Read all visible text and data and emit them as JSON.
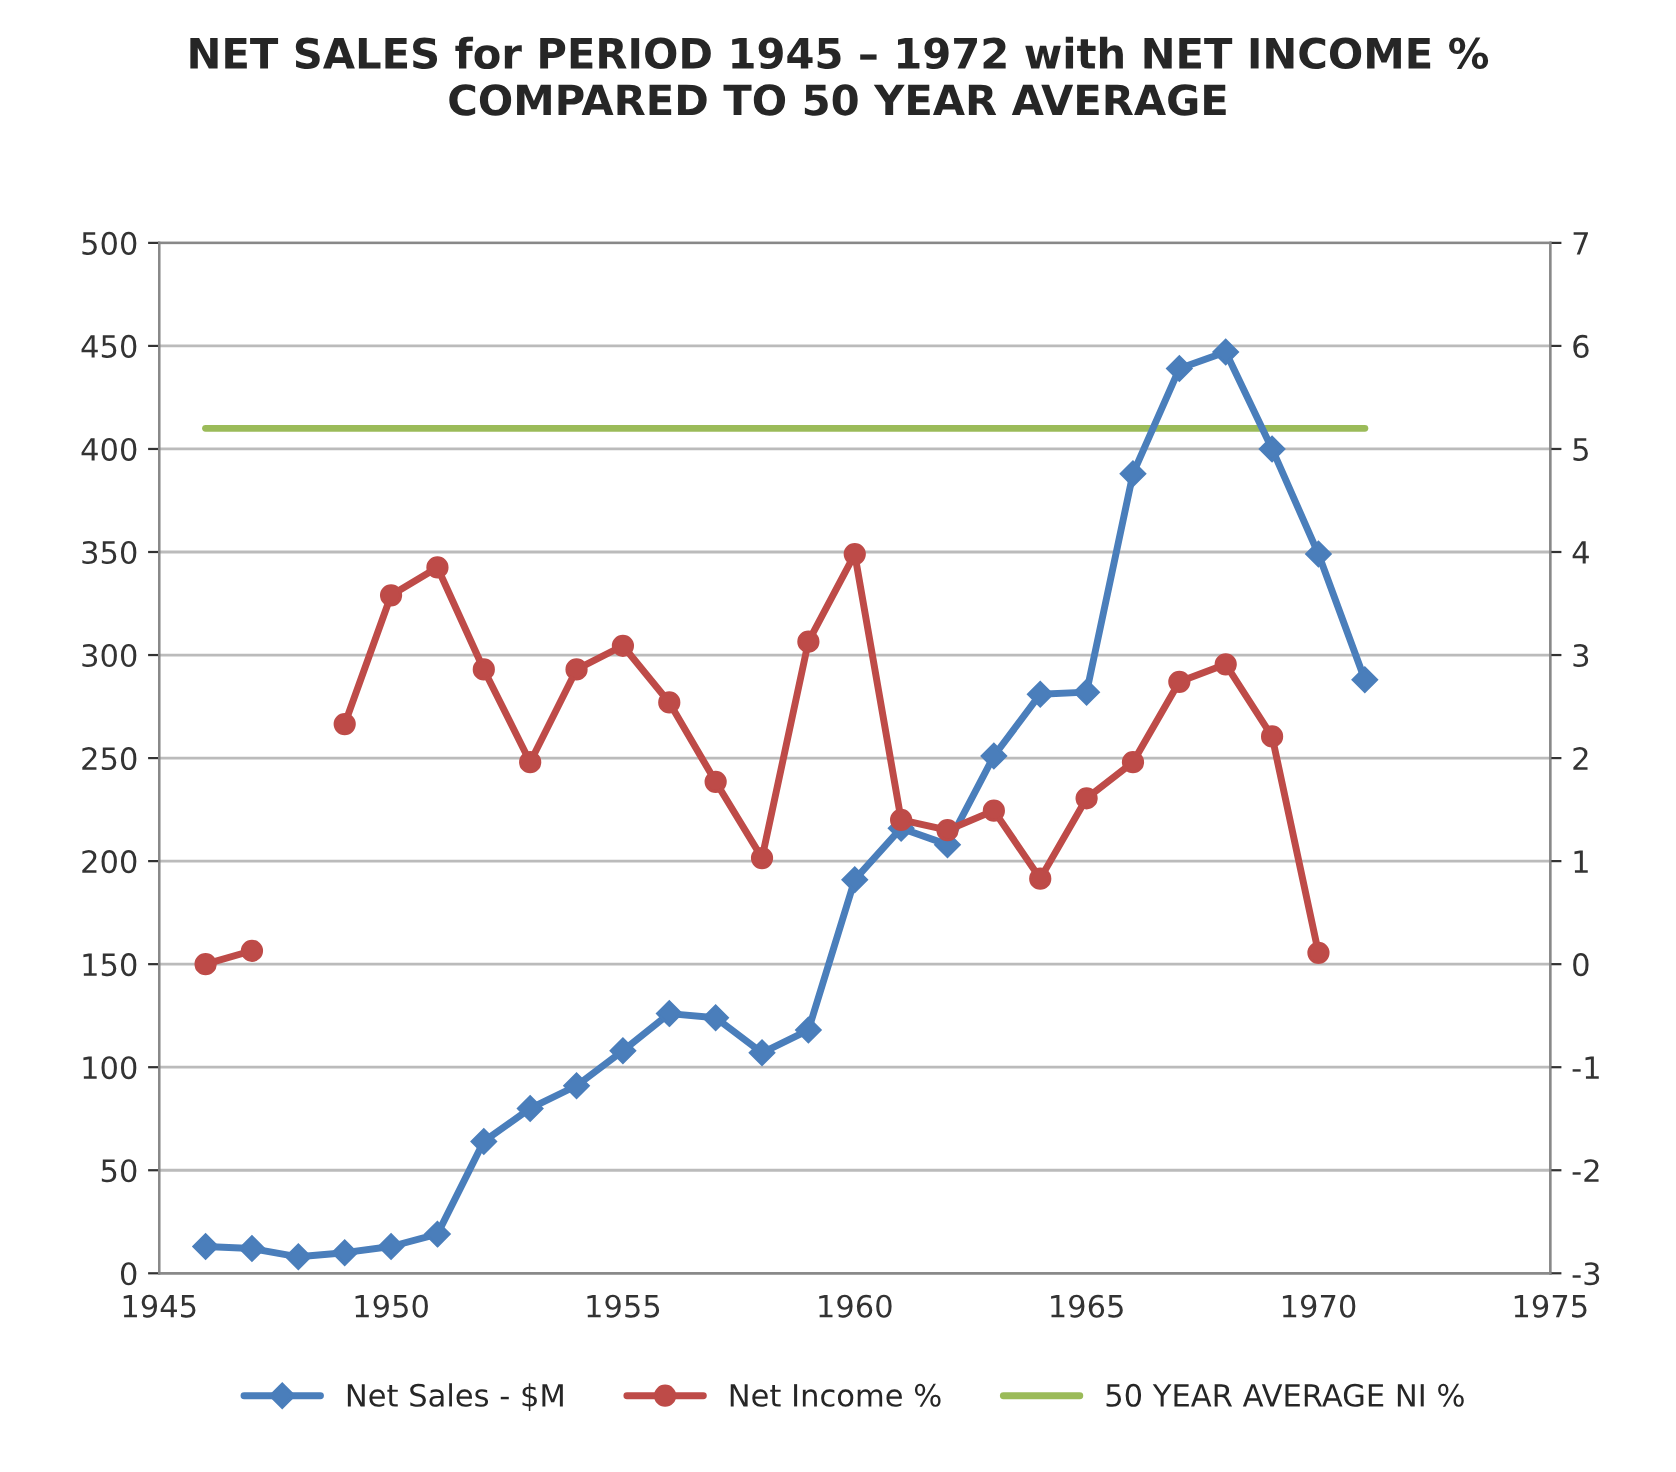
{
  "chart_data": {
    "type": "line",
    "title": "NET SALES for PERIOD 1945 – 1972 with NET INCOME %\nCOMPARED TO 50 YEAR AVERAGE",
    "x": [
      1946,
      1947,
      1948,
      1949,
      1950,
      1951,
      1952,
      1953,
      1954,
      1955,
      1956,
      1957,
      1958,
      1959,
      1960,
      1961,
      1962,
      1963,
      1964,
      1965,
      1966,
      1967,
      1968,
      1969,
      1970,
      1971
    ],
    "series": [
      {
        "name": "Net Sales - $M",
        "color": "#4a7ebb",
        "marker": "diamond",
        "values": [
          13,
          12,
          8,
          10,
          13,
          19,
          64,
          80,
          91,
          108,
          126,
          124,
          107,
          118,
          191,
          216,
          208,
          251,
          281,
          282,
          388,
          439,
          447,
          400,
          349,
          288
        ]
      },
      {
        "name": "Net Income %",
        "color": "#be4b48",
        "marker": "circle",
        "axis": "y2",
        "values": [
          0.0,
          0.13,
          null,
          2.33,
          3.58,
          3.85,
          2.86,
          1.96,
          2.86,
          3.09,
          2.54,
          1.77,
          1.03,
          3.13,
          3.98,
          1.4,
          1.3,
          1.49,
          0.83,
          1.61,
          1.96,
          2.74,
          2.91,
          2.21,
          0.11,
          null
        ]
      },
      {
        "name": "50 YEAR AVERAGE NI %",
        "color": "#9bbb59",
        "marker": "none",
        "x": [
          1946,
          1971
        ],
        "values": [
          410,
          410
        ]
      }
    ],
    "xlim": [
      1945,
      1975
    ],
    "xticks": [
      1945,
      1950,
      1955,
      1960,
      1965,
      1970,
      1975
    ],
    "ylim": [
      0,
      500
    ],
    "yticks": [
      0,
      50,
      100,
      150,
      200,
      250,
      300,
      350,
      400,
      450,
      500
    ],
    "y2lim": [
      -3,
      7
    ],
    "y2ticks": [
      -3,
      -2,
      -1,
      0,
      1,
      2,
      3,
      4,
      5,
      6,
      7
    ],
    "grid": "y",
    "legend": "bottom",
    "line_style": "solid"
  }
}
